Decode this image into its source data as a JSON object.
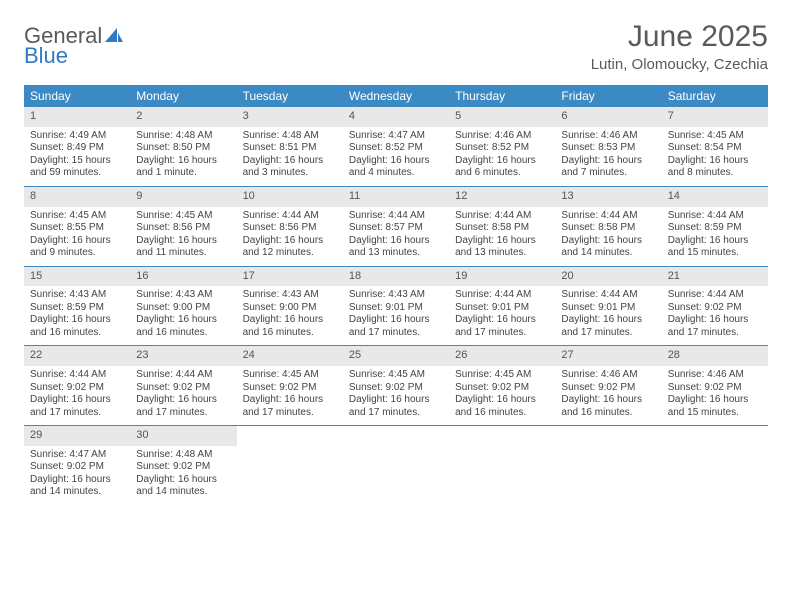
{
  "brand": {
    "line1": "General",
    "line2": "Blue"
  },
  "title": "June 2025",
  "location": "Lutin, Olomoucky, Czechia",
  "colors": {
    "header_bg": "#3b8ac4",
    "header_text": "#ffffff",
    "daynum_bg": "#e8e8e8",
    "cell_border": "#3b8ac4",
    "body_text": "#444444",
    "logo_gray": "#5a5a5a",
    "logo_blue": "#2f7ac0"
  },
  "weekdays": [
    "Sunday",
    "Monday",
    "Tuesday",
    "Wednesday",
    "Thursday",
    "Friday",
    "Saturday"
  ],
  "weeks": [
    [
      {
        "n": "1",
        "sunrise": "Sunrise: 4:49 AM",
        "sunset": "Sunset: 8:49 PM",
        "d1": "Daylight: 15 hours",
        "d2": "and 59 minutes."
      },
      {
        "n": "2",
        "sunrise": "Sunrise: 4:48 AM",
        "sunset": "Sunset: 8:50 PM",
        "d1": "Daylight: 16 hours",
        "d2": "and 1 minute."
      },
      {
        "n": "3",
        "sunrise": "Sunrise: 4:48 AM",
        "sunset": "Sunset: 8:51 PM",
        "d1": "Daylight: 16 hours",
        "d2": "and 3 minutes."
      },
      {
        "n": "4",
        "sunrise": "Sunrise: 4:47 AM",
        "sunset": "Sunset: 8:52 PM",
        "d1": "Daylight: 16 hours",
        "d2": "and 4 minutes."
      },
      {
        "n": "5",
        "sunrise": "Sunrise: 4:46 AM",
        "sunset": "Sunset: 8:52 PM",
        "d1": "Daylight: 16 hours",
        "d2": "and 6 minutes."
      },
      {
        "n": "6",
        "sunrise": "Sunrise: 4:46 AM",
        "sunset": "Sunset: 8:53 PM",
        "d1": "Daylight: 16 hours",
        "d2": "and 7 minutes."
      },
      {
        "n": "7",
        "sunrise": "Sunrise: 4:45 AM",
        "sunset": "Sunset: 8:54 PM",
        "d1": "Daylight: 16 hours",
        "d2": "and 8 minutes."
      }
    ],
    [
      {
        "n": "8",
        "sunrise": "Sunrise: 4:45 AM",
        "sunset": "Sunset: 8:55 PM",
        "d1": "Daylight: 16 hours",
        "d2": "and 9 minutes."
      },
      {
        "n": "9",
        "sunrise": "Sunrise: 4:45 AM",
        "sunset": "Sunset: 8:56 PM",
        "d1": "Daylight: 16 hours",
        "d2": "and 11 minutes."
      },
      {
        "n": "10",
        "sunrise": "Sunrise: 4:44 AM",
        "sunset": "Sunset: 8:56 PM",
        "d1": "Daylight: 16 hours",
        "d2": "and 12 minutes."
      },
      {
        "n": "11",
        "sunrise": "Sunrise: 4:44 AM",
        "sunset": "Sunset: 8:57 PM",
        "d1": "Daylight: 16 hours",
        "d2": "and 13 minutes."
      },
      {
        "n": "12",
        "sunrise": "Sunrise: 4:44 AM",
        "sunset": "Sunset: 8:58 PM",
        "d1": "Daylight: 16 hours",
        "d2": "and 13 minutes."
      },
      {
        "n": "13",
        "sunrise": "Sunrise: 4:44 AM",
        "sunset": "Sunset: 8:58 PM",
        "d1": "Daylight: 16 hours",
        "d2": "and 14 minutes."
      },
      {
        "n": "14",
        "sunrise": "Sunrise: 4:44 AM",
        "sunset": "Sunset: 8:59 PM",
        "d1": "Daylight: 16 hours",
        "d2": "and 15 minutes."
      }
    ],
    [
      {
        "n": "15",
        "sunrise": "Sunrise: 4:43 AM",
        "sunset": "Sunset: 8:59 PM",
        "d1": "Daylight: 16 hours",
        "d2": "and 16 minutes."
      },
      {
        "n": "16",
        "sunrise": "Sunrise: 4:43 AM",
        "sunset": "Sunset: 9:00 PM",
        "d1": "Daylight: 16 hours",
        "d2": "and 16 minutes."
      },
      {
        "n": "17",
        "sunrise": "Sunrise: 4:43 AM",
        "sunset": "Sunset: 9:00 PM",
        "d1": "Daylight: 16 hours",
        "d2": "and 16 minutes."
      },
      {
        "n": "18",
        "sunrise": "Sunrise: 4:43 AM",
        "sunset": "Sunset: 9:01 PM",
        "d1": "Daylight: 16 hours",
        "d2": "and 17 minutes."
      },
      {
        "n": "19",
        "sunrise": "Sunrise: 4:44 AM",
        "sunset": "Sunset: 9:01 PM",
        "d1": "Daylight: 16 hours",
        "d2": "and 17 minutes."
      },
      {
        "n": "20",
        "sunrise": "Sunrise: 4:44 AM",
        "sunset": "Sunset: 9:01 PM",
        "d1": "Daylight: 16 hours",
        "d2": "and 17 minutes."
      },
      {
        "n": "21",
        "sunrise": "Sunrise: 4:44 AM",
        "sunset": "Sunset: 9:02 PM",
        "d1": "Daylight: 16 hours",
        "d2": "and 17 minutes."
      }
    ],
    [
      {
        "n": "22",
        "sunrise": "Sunrise: 4:44 AM",
        "sunset": "Sunset: 9:02 PM",
        "d1": "Daylight: 16 hours",
        "d2": "and 17 minutes."
      },
      {
        "n": "23",
        "sunrise": "Sunrise: 4:44 AM",
        "sunset": "Sunset: 9:02 PM",
        "d1": "Daylight: 16 hours",
        "d2": "and 17 minutes."
      },
      {
        "n": "24",
        "sunrise": "Sunrise: 4:45 AM",
        "sunset": "Sunset: 9:02 PM",
        "d1": "Daylight: 16 hours",
        "d2": "and 17 minutes."
      },
      {
        "n": "25",
        "sunrise": "Sunrise: 4:45 AM",
        "sunset": "Sunset: 9:02 PM",
        "d1": "Daylight: 16 hours",
        "d2": "and 17 minutes."
      },
      {
        "n": "26",
        "sunrise": "Sunrise: 4:45 AM",
        "sunset": "Sunset: 9:02 PM",
        "d1": "Daylight: 16 hours",
        "d2": "and 16 minutes."
      },
      {
        "n": "27",
        "sunrise": "Sunrise: 4:46 AM",
        "sunset": "Sunset: 9:02 PM",
        "d1": "Daylight: 16 hours",
        "d2": "and 16 minutes."
      },
      {
        "n": "28",
        "sunrise": "Sunrise: 4:46 AM",
        "sunset": "Sunset: 9:02 PM",
        "d1": "Daylight: 16 hours",
        "d2": "and 15 minutes."
      }
    ],
    [
      {
        "n": "29",
        "sunrise": "Sunrise: 4:47 AM",
        "sunset": "Sunset: 9:02 PM",
        "d1": "Daylight: 16 hours",
        "d2": "and 14 minutes."
      },
      {
        "n": "30",
        "sunrise": "Sunrise: 4:48 AM",
        "sunset": "Sunset: 9:02 PM",
        "d1": "Daylight: 16 hours",
        "d2": "and 14 minutes."
      },
      null,
      null,
      null,
      null,
      null
    ]
  ]
}
